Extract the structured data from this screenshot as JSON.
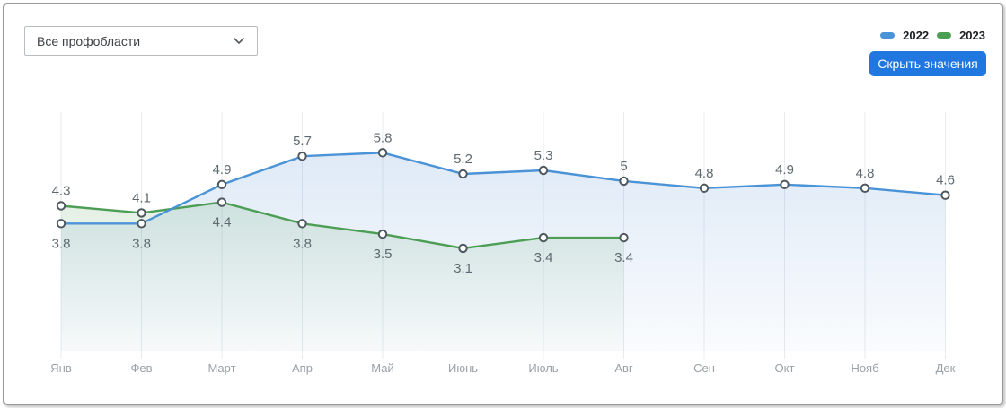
{
  "filter": {
    "selected_value": "Все профобласти",
    "chevron_icon": "chevron-down"
  },
  "legend": {
    "items": [
      {
        "label": "2022",
        "color": "#4a93d6"
      },
      {
        "label": "2023",
        "color": "#4d9e55"
      }
    ]
  },
  "toolbar": {
    "hide_values_label": "Скрыть значения",
    "button_color": "#2177e0"
  },
  "chart_data": {
    "type": "line",
    "x_categories": [
      "Янв",
      "Фев",
      "Март",
      "Апр",
      "Май",
      "Июнь",
      "Июль",
      "Авг",
      "Сен",
      "Окт",
      "Нояб",
      "Дек"
    ],
    "series": [
      {
        "name": "2022",
        "color": "#4a93d6",
        "fill_top": "rgba(77,139,208,0.18)",
        "fill_bottom": "rgba(77,139,208,0.03)",
        "values": [
          3.8,
          3.8,
          4.9,
          5.7,
          5.8,
          5.2,
          5.3,
          5,
          4.8,
          4.9,
          4.8,
          4.6
        ],
        "label_positions": [
          "below",
          "below",
          "above",
          "above",
          "above",
          "above",
          "above",
          "above",
          "above",
          "above",
          "above",
          "above"
        ]
      },
      {
        "name": "2023",
        "color": "#4d9e55",
        "fill_top": "rgba(84,158,89,0.16)",
        "fill_bottom": "rgba(84,158,89,0.02)",
        "values": [
          4.3,
          4.1,
          4.4,
          3.8,
          3.5,
          3.1,
          3.4,
          3.4
        ],
        "label_positions": [
          "above",
          "above",
          "below",
          "below",
          "below",
          "below",
          "below",
          "below"
        ]
      }
    ],
    "title": "",
    "xlabel": "",
    "ylabel": "",
    "ylim": [
      0,
      7
    ],
    "grid": "vertical-only",
    "y_axis_visible": false,
    "value_labels_visible": true,
    "legend_position": "top-right",
    "value_label_color": "#5f6a70",
    "axis_label_color": "#99a0a6",
    "marker_stroke_color": "#4e585e"
  }
}
